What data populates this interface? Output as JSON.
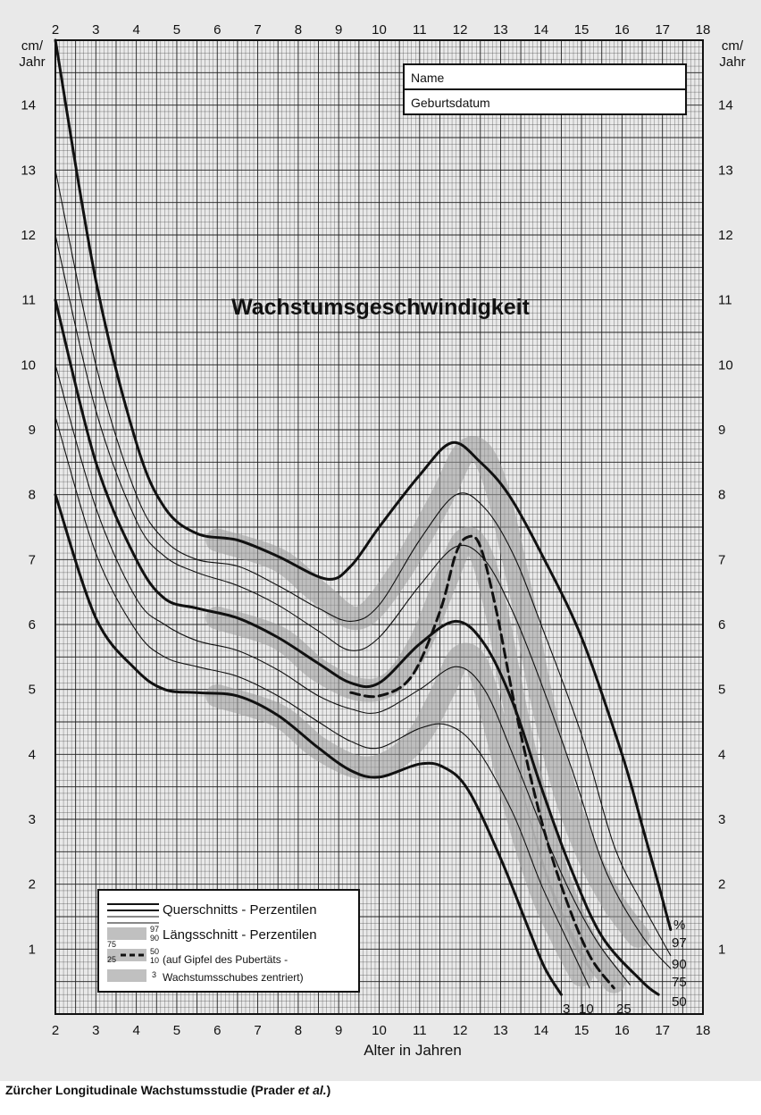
{
  "chart_data": {
    "type": "line",
    "title": "Wachstumsgeschwindigkeit",
    "xlabel": "Alter in Jahren",
    "ylabel": "cm/ Jahr",
    "ylabel_lines": [
      "cm/",
      "Jahr"
    ],
    "xlim": [
      2,
      18
    ],
    "ylim": [
      0,
      15
    ],
    "x_ticks": [
      2,
      3,
      4,
      5,
      6,
      7,
      8,
      9,
      10,
      11,
      12,
      13,
      14,
      15,
      16,
      17,
      18
    ],
    "y_ticks": [
      1,
      2,
      3,
      4,
      5,
      6,
      7,
      8,
      9,
      10,
      11,
      12,
      13,
      14
    ],
    "grid": true,
    "form_fields": [
      "Name",
      "Geburtsdatum"
    ],
    "percent_symbol": "%",
    "legend": {
      "position": "bottom-left",
      "entries": [
        "Querschnitts - Perzentilen",
        "Längsschnitt - Perzentilen",
        "(auf Gipfel des Pubertäts -",
        "Wachstumsschubes zentriert)"
      ],
      "band_labels": [
        "97",
        "90",
        "75",
        "25",
        "50",
        "10",
        "3"
      ]
    },
    "series": [
      {
        "name": "97",
        "style": "thick",
        "points": [
          [
            2,
            15
          ],
          [
            3,
            11.3
          ],
          [
            4,
            8.8
          ],
          [
            4.7,
            7.8
          ],
          [
            5.5,
            7.4
          ],
          [
            6.5,
            7.3
          ],
          [
            7.5,
            7.05
          ],
          [
            8.7,
            6.7
          ],
          [
            9.3,
            6.9
          ],
          [
            10,
            7.5
          ],
          [
            11,
            8.3
          ],
          [
            11.8,
            8.8
          ],
          [
            12.5,
            8.5
          ],
          [
            13.2,
            8.0
          ],
          [
            14,
            7.1
          ],
          [
            15,
            5.8
          ],
          [
            16,
            4.0
          ],
          [
            16.5,
            2.9
          ],
          [
            16.9,
            2.0
          ],
          [
            17.2,
            1.3
          ]
        ]
      },
      {
        "name": "90",
        "style": "thin",
        "points": [
          [
            2,
            13
          ],
          [
            3,
            10.0
          ],
          [
            4,
            8.0
          ],
          [
            4.7,
            7.3
          ],
          [
            5.5,
            7.0
          ],
          [
            6.5,
            6.9
          ],
          [
            7.5,
            6.6
          ],
          [
            8.5,
            6.25
          ],
          [
            9.3,
            6.05
          ],
          [
            10,
            6.3
          ],
          [
            11,
            7.3
          ],
          [
            11.9,
            8.0
          ],
          [
            12.6,
            7.8
          ],
          [
            13.3,
            7.1
          ],
          [
            14,
            6.0
          ],
          [
            15,
            4.3
          ],
          [
            15.8,
            2.6
          ],
          [
            16.5,
            1.7
          ],
          [
            17.2,
            0.9
          ]
        ]
      },
      {
        "name": "75",
        "style": "thin",
        "points": [
          [
            2,
            12
          ],
          [
            3,
            9.3
          ],
          [
            4,
            7.6
          ],
          [
            4.7,
            7.05
          ],
          [
            5.5,
            6.8
          ],
          [
            6.5,
            6.6
          ],
          [
            7.5,
            6.3
          ],
          [
            8.5,
            5.9
          ],
          [
            9.3,
            5.6
          ],
          [
            10,
            5.8
          ],
          [
            11,
            6.6
          ],
          [
            11.9,
            7.2
          ],
          [
            12.6,
            7.0
          ],
          [
            13.3,
            6.2
          ],
          [
            14,
            5.1
          ],
          [
            14.8,
            3.7
          ],
          [
            15.6,
            2.2
          ],
          [
            16.5,
            1.2
          ],
          [
            17.2,
            0.7
          ]
        ]
      },
      {
        "name": "50",
        "style": "thick",
        "points": [
          [
            2,
            11
          ],
          [
            3,
            8.5
          ],
          [
            4,
            7.0
          ],
          [
            4.7,
            6.4
          ],
          [
            5.5,
            6.25
          ],
          [
            6.5,
            6.1
          ],
          [
            7.5,
            5.8
          ],
          [
            8.5,
            5.4
          ],
          [
            9.3,
            5.1
          ],
          [
            10,
            5.1
          ],
          [
            11,
            5.7
          ],
          [
            11.9,
            6.05
          ],
          [
            12.6,
            5.7
          ],
          [
            13.3,
            4.8
          ],
          [
            14,
            3.5
          ],
          [
            14.7,
            2.3
          ],
          [
            15.5,
            1.2
          ],
          [
            16.5,
            0.5
          ],
          [
            16.9,
            0.3
          ]
        ]
      },
      {
        "name": "25",
        "style": "thin",
        "points": [
          [
            2,
            10
          ],
          [
            3,
            7.8
          ],
          [
            4,
            6.4
          ],
          [
            4.7,
            6.0
          ],
          [
            5.5,
            5.75
          ],
          [
            6.5,
            5.6
          ],
          [
            7.5,
            5.3
          ],
          [
            8.5,
            4.9
          ],
          [
            9.3,
            4.7
          ],
          [
            10,
            4.65
          ],
          [
            11,
            5.0
          ],
          [
            11.9,
            5.35
          ],
          [
            12.6,
            5.0
          ],
          [
            13.3,
            4.0
          ],
          [
            14,
            2.9
          ],
          [
            14.7,
            1.9
          ],
          [
            15.4,
            1.1
          ],
          [
            16.2,
            0.45
          ]
        ]
      },
      {
        "name": "10",
        "style": "thin",
        "points": [
          [
            2,
            9.2
          ],
          [
            3,
            7.1
          ],
          [
            4,
            5.9
          ],
          [
            4.7,
            5.5
          ],
          [
            5.5,
            5.35
          ],
          [
            6.5,
            5.2
          ],
          [
            7.5,
            4.9
          ],
          [
            8.5,
            4.5
          ],
          [
            9.3,
            4.2
          ],
          [
            10,
            4.1
          ],
          [
            11,
            4.4
          ],
          [
            11.7,
            4.45
          ],
          [
            12.4,
            4.1
          ],
          [
            13.3,
            3.1
          ],
          [
            14,
            2.0
          ],
          [
            14.6,
            1.2
          ],
          [
            15.2,
            0.4
          ]
        ]
      },
      {
        "name": "3",
        "style": "thick",
        "points": [
          [
            2,
            8
          ],
          [
            3,
            6.1
          ],
          [
            4,
            5.3
          ],
          [
            4.7,
            5.0
          ],
          [
            5.5,
            4.95
          ],
          [
            6.5,
            4.9
          ],
          [
            7.5,
            4.6
          ],
          [
            8.5,
            4.1
          ],
          [
            9.3,
            3.75
          ],
          [
            10,
            3.65
          ],
          [
            11,
            3.85
          ],
          [
            11.6,
            3.8
          ],
          [
            12.2,
            3.45
          ],
          [
            13,
            2.4
          ],
          [
            13.7,
            1.3
          ],
          [
            14.1,
            0.7
          ],
          [
            14.5,
            0.3
          ]
        ]
      },
      {
        "name": "50",
        "style": "dashed",
        "points": [
          [
            9.3,
            4.95
          ],
          [
            10,
            4.9
          ],
          [
            10.8,
            5.2
          ],
          [
            11.5,
            6.2
          ],
          [
            11.9,
            7.1
          ],
          [
            12.2,
            7.35
          ],
          [
            12.5,
            7.2
          ],
          [
            12.9,
            6.2
          ],
          [
            13.4,
            4.6
          ],
          [
            14,
            3.0
          ],
          [
            14.6,
            1.8
          ],
          [
            15.2,
            0.9
          ],
          [
            15.8,
            0.4
          ]
        ]
      }
    ],
    "bands": [
      {
        "name": "97-90",
        "points": [
          [
            6,
            7.3
          ],
          [
            7.5,
            7.0
          ],
          [
            8.5,
            6.5
          ],
          [
            9.5,
            6.1
          ],
          [
            10.5,
            6.8
          ],
          [
            11.5,
            7.9
          ],
          [
            12.2,
            8.7
          ],
          [
            12.8,
            8.3
          ],
          [
            13.5,
            6.5
          ],
          [
            14,
            4.9
          ],
          [
            14.6,
            3.4
          ],
          [
            15.2,
            2.4
          ],
          [
            15.8,
            1.7
          ],
          [
            16.4,
            1.2
          ]
        ]
      },
      {
        "name": "75-25",
        "points": [
          [
            6,
            6.1
          ],
          [
            7.5,
            5.8
          ],
          [
            8.5,
            5.3
          ],
          [
            9.5,
            5.0
          ],
          [
            10.3,
            5.1
          ],
          [
            11,
            5.7
          ],
          [
            11.6,
            6.6
          ],
          [
            12.1,
            7.3
          ],
          [
            12.5,
            7.1
          ],
          [
            12.9,
            6.2
          ],
          [
            13.4,
            4.6
          ],
          [
            14,
            3.0
          ],
          [
            14.6,
            1.8
          ],
          [
            15.2,
            1.0
          ],
          [
            15.8,
            0.5
          ]
        ]
      },
      {
        "name": "10-3",
        "points": [
          [
            6,
            4.9
          ],
          [
            7.5,
            4.6
          ],
          [
            8.5,
            4.1
          ],
          [
            9.5,
            3.8
          ],
          [
            10.3,
            3.9
          ],
          [
            11,
            4.3
          ],
          [
            11.6,
            5.0
          ],
          [
            12,
            5.5
          ],
          [
            12.4,
            5.4
          ],
          [
            12.8,
            4.6
          ],
          [
            13.4,
            3.1
          ],
          [
            14,
            1.9
          ],
          [
            14.5,
            1.2
          ],
          [
            15,
            0.6
          ]
        ]
      }
    ],
    "end_labels_bottom": [
      "3",
      "10",
      "25",
      "50"
    ],
    "end_labels_right": [
      "97",
      "90",
      "75"
    ]
  },
  "caption": {
    "text": "Zürcher Longitudinale Wachstumsstudie (Prader ",
    "italic": "et al.",
    "end": ")"
  }
}
